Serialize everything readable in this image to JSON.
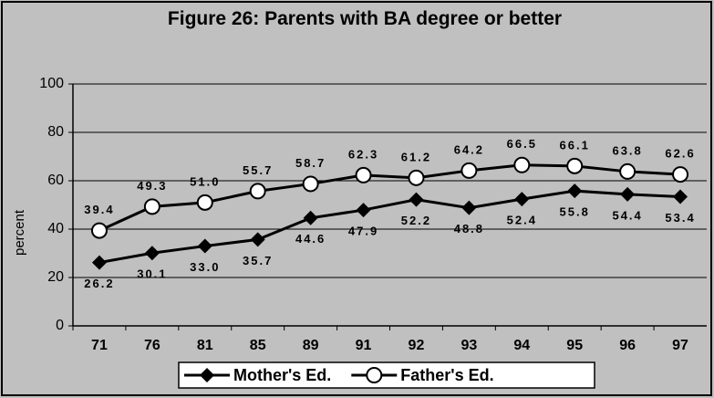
{
  "chart_data": {
    "type": "line",
    "title": "Figure 26: Parents with BA degree or better",
    "y_label": "percent",
    "categories": [
      "71",
      "76",
      "81",
      "85",
      "89",
      "91",
      "92",
      "93",
      "94",
      "95",
      "96",
      "97"
    ],
    "series": [
      {
        "name": "Mother's Ed.",
        "color": "#000000",
        "marker": "diamond",
        "values": [
          26.2,
          30.1,
          33.0,
          35.7,
          44.6,
          47.9,
          52.2,
          48.8,
          52.4,
          55.8,
          54.4,
          53.4
        ],
        "value_labels": [
          "26.2",
          "30.1",
          "33.0",
          "35.7",
          "44.6",
          "47.9",
          "52.2",
          "48.8",
          "52.4",
          "55.8",
          "54.4",
          "53.4"
        ]
      },
      {
        "name": "Father's Ed.",
        "color": "#000000",
        "marker": "circle",
        "values": [
          39.4,
          49.3,
          51.0,
          55.7,
          58.7,
          62.3,
          61.2,
          64.2,
          66.5,
          66.1,
          63.8,
          62.6
        ],
        "value_labels": [
          "39.4",
          "49.3",
          "51.0",
          "55.7",
          "58.7",
          "62.3",
          "61.2",
          "64.2",
          "66.5",
          "66.1",
          "63.8",
          "62.6"
        ]
      }
    ],
    "ylim": [
      0,
      100
    ],
    "yticks": [
      0,
      20,
      40,
      60,
      80,
      100
    ],
    "grid": true,
    "legend": "bottom"
  }
}
